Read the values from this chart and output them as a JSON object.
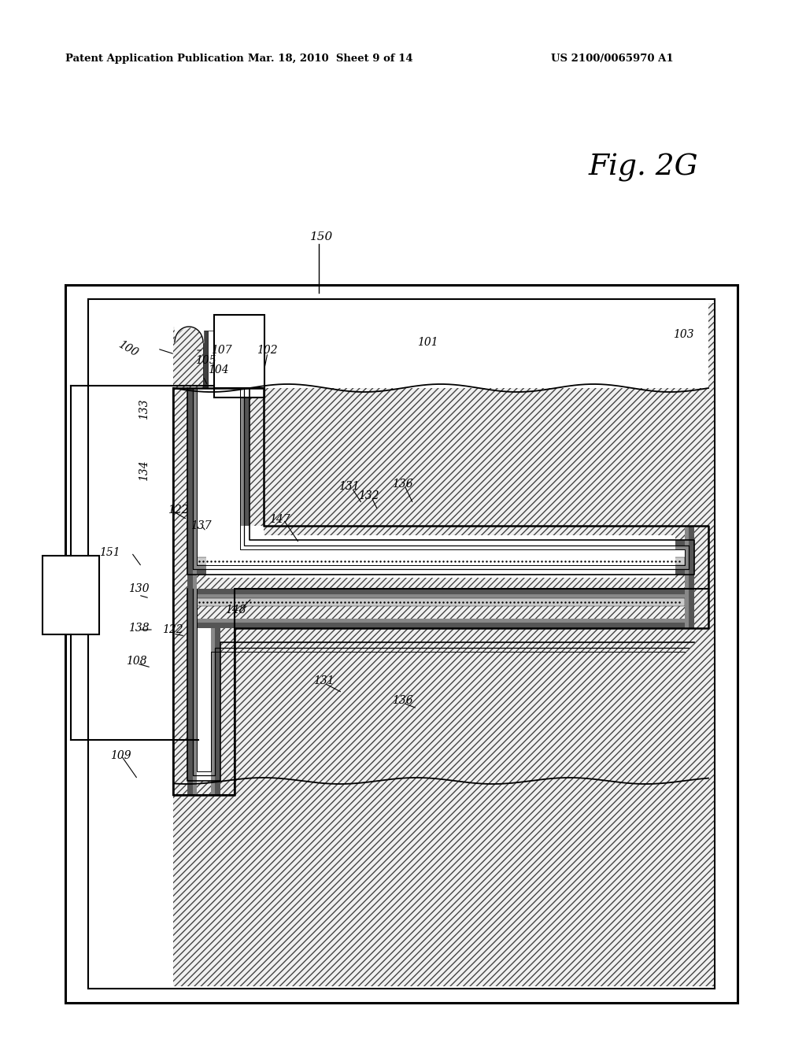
{
  "header_left": "Patent Application Publication",
  "header_mid": "Mar. 18, 2010  Sheet 9 of 14",
  "header_right": "US 2100/0065970 A1",
  "fig_label": "Fig. 2G",
  "bg": "#ffffff"
}
